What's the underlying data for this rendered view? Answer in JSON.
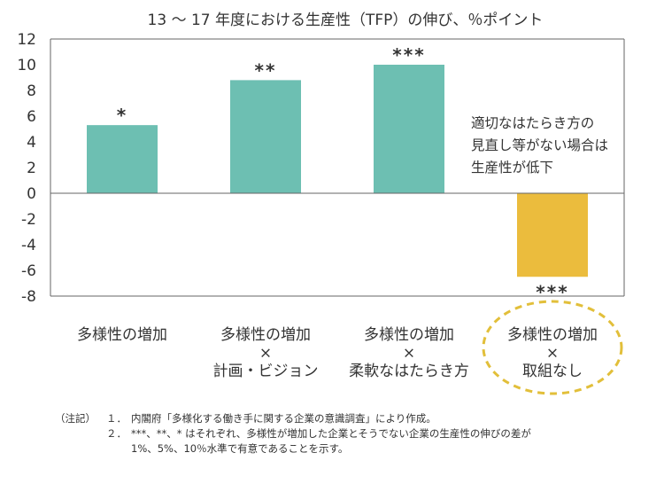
{
  "chart_data": {
    "type": "bar",
    "title": "13 〜 17 年度における生産性（TFP）の伸び、％ポイント",
    "categories": [
      [
        "多様性の増加"
      ],
      [
        "多様性の増加",
        "×",
        "計画・ビジョン"
      ],
      [
        "多様性の増加",
        "×",
        "柔軟なはたらき方"
      ],
      [
        "多様性の増加",
        "×",
        "取組なし"
      ]
    ],
    "values": [
      5.3,
      8.8,
      10.0,
      -6.5
    ],
    "significance": [
      "*",
      "**",
      "***",
      "***"
    ],
    "bar_colors": [
      "#6DBFB2",
      "#6DBFB2",
      "#6DBFB2",
      "#EBBC3D"
    ],
    "highlight_category_index": 3,
    "highlight_color": "#E2BF3A",
    "y_ticks": [
      12,
      10,
      8,
      6,
      4,
      2,
      0,
      -2,
      -4,
      -6,
      -8
    ],
    "ylim": [
      -8,
      12
    ],
    "annotation": [
      "適切なはたらき方の",
      "見直し等がない場合は",
      "生産性が低下"
    ],
    "grid": false
  },
  "notes": {
    "label": "（注記）",
    "items": [
      {
        "num": "１．",
        "text": "内閣府「多様化する働き手に関する企業の意識調査」により作成。"
      },
      {
        "num": "２．",
        "text": "***、**、* はそれぞれ、多様性が増加した企業とそうでない企業の生産性の伸びの差が",
        "continuation": "1%、5%、10％水準で有意であることを示す。"
      }
    ]
  }
}
